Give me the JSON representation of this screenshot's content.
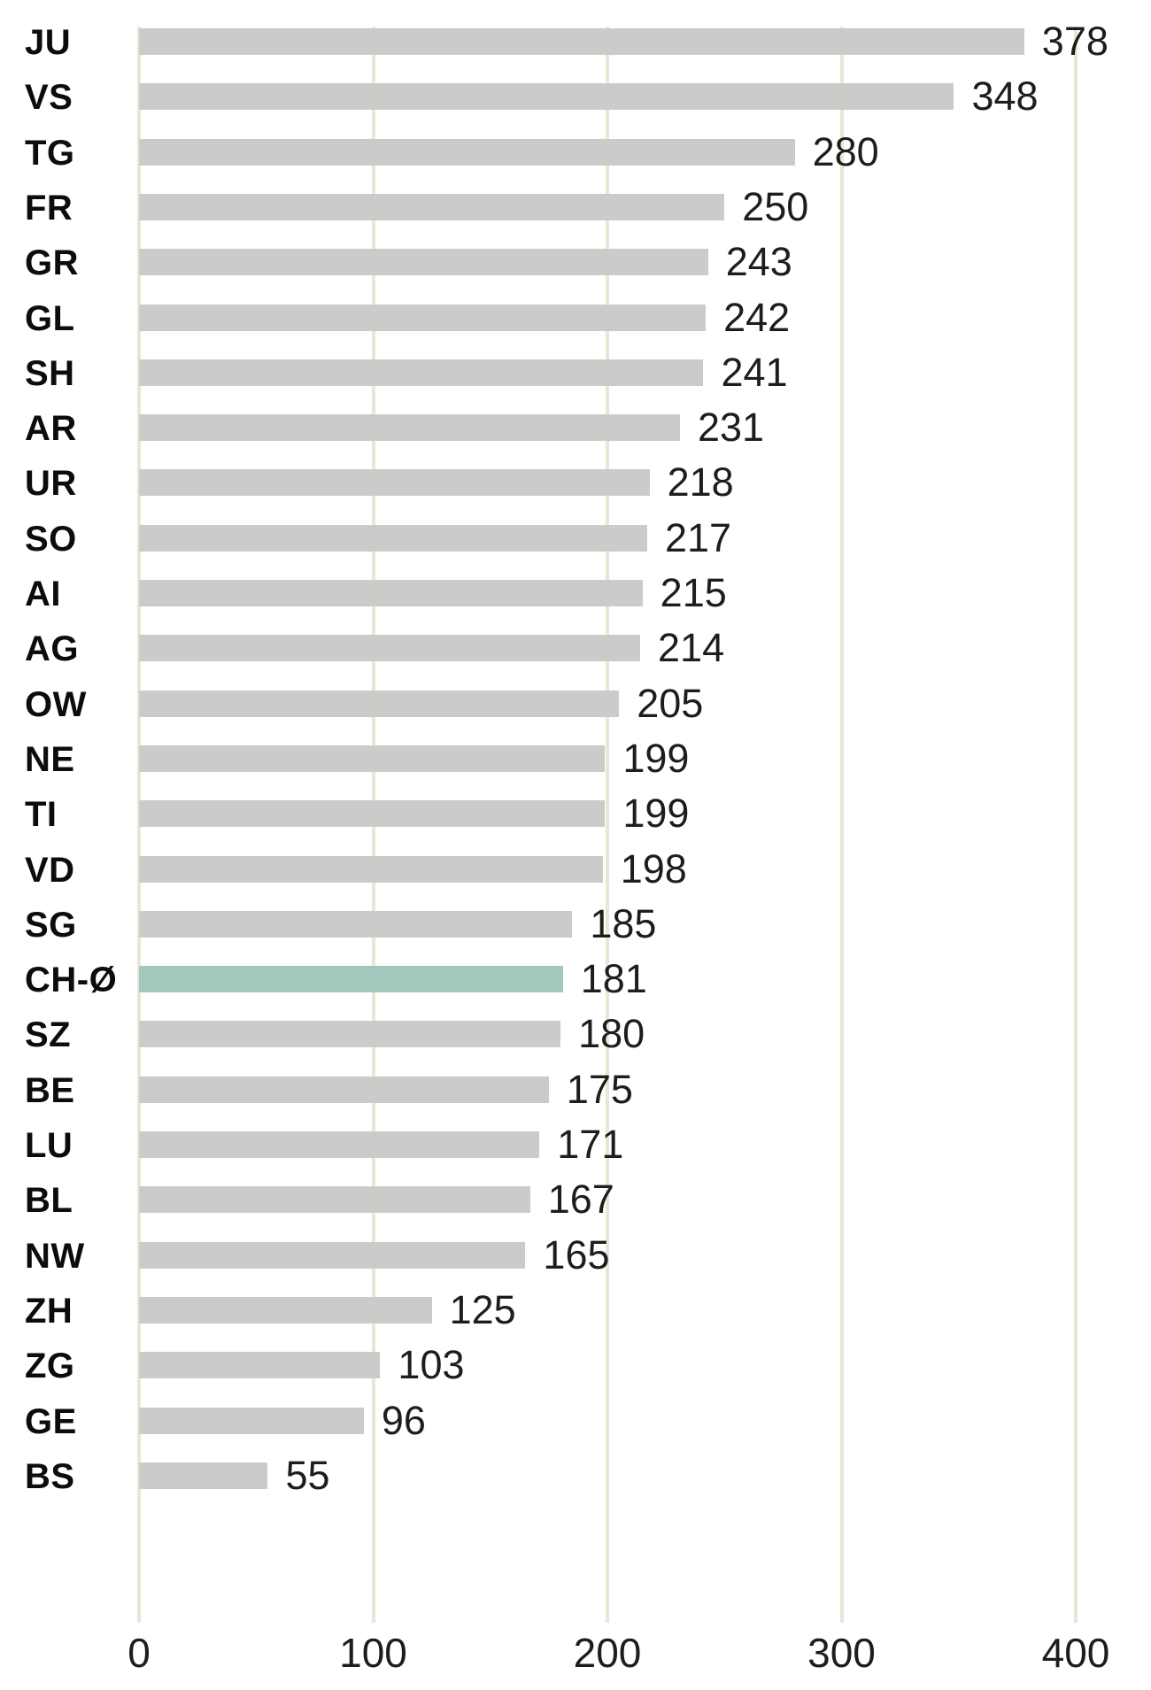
{
  "chart_data": {
    "type": "bar",
    "orientation": "horizontal",
    "title": "",
    "xlabel": "",
    "ylabel": "",
    "categories": [
      "JU",
      "VS",
      "TG",
      "FR",
      "GR",
      "GL",
      "SH",
      "AR",
      "UR",
      "SO",
      "AI",
      "AG",
      "OW",
      "NE",
      "TI",
      "VD",
      "SG",
      "CH-Ø",
      "SZ",
      "BE",
      "LU",
      "BL",
      "NW",
      "ZH",
      "ZG",
      "GE",
      "BS"
    ],
    "values": [
      378,
      348,
      280,
      250,
      243,
      242,
      241,
      231,
      218,
      217,
      215,
      214,
      205,
      199,
      199,
      198,
      185,
      181,
      180,
      175,
      171,
      167,
      165,
      125,
      103,
      96,
      55
    ],
    "value_labels": [
      "378",
      "348",
      "280",
      "250",
      "243",
      "242",
      "241",
      "231",
      "218",
      "217",
      "215",
      "214",
      "205",
      "199",
      "199",
      "198",
      "185",
      "181",
      "180",
      "175",
      "171",
      "167",
      "165",
      "125",
      "103",
      "96",
      "55"
    ],
    "highlighted_category": "CH-Ø",
    "xlim": [
      0,
      400
    ],
    "x_ticks": [
      0,
      100,
      200,
      300,
      400
    ],
    "x_tick_labels": [
      "0",
      "100",
      "200",
      "300",
      "400"
    ],
    "grid": true,
    "legend": false,
    "colors": {
      "bar": "#cbcbca",
      "highlight": "#a2c8be",
      "gridline": "#eae6d5",
      "category_label": "#0c0c0c",
      "value_label": "#1d1d1b",
      "background": "#ffffff"
    }
  }
}
